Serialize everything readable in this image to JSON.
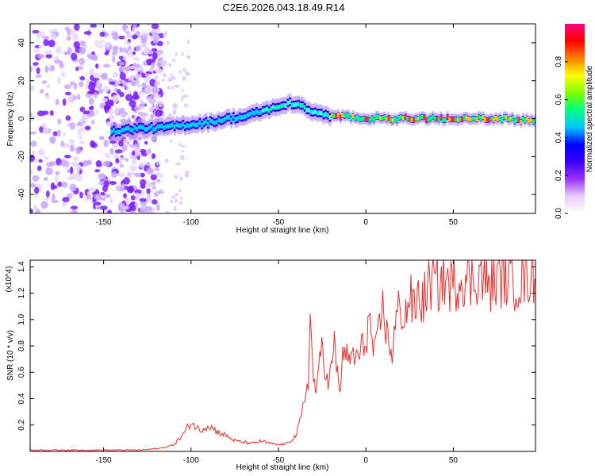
{
  "title": "C2E6.2026.043.18.49.R14",
  "chart_data": [
    {
      "type": "heatmap",
      "title": "C2E6.2026.043.18.49.R14",
      "xlabel": "Height of straight line (km)",
      "ylabel": "Frequency (Hz)",
      "xlim": [
        -192,
        97
      ],
      "ylim": [
        -50,
        50
      ],
      "xticks": [
        -150,
        -100,
        -50,
        0,
        50
      ],
      "yticks": [
        -40,
        -20,
        0,
        20,
        40
      ],
      "colorbar": {
        "label": "Normalized spectral amplitude",
        "range": [
          0.0,
          1.0
        ],
        "ticks": [
          0.0,
          0.2,
          0.4,
          0.6,
          0.8
        ],
        "colormap": [
          "#ffffff",
          "#e6ccff",
          "#9b30ff",
          "#3a00ff",
          "#0000ff",
          "#00c8ff",
          "#00ff80",
          "#80ff00",
          "#ffff00",
          "#ff8000",
          "#ff0000",
          "#ff0080"
        ]
      },
      "ridge": {
        "x": [
          -145,
          -140,
          -130,
          -120,
          -110,
          -100,
          -90,
          -80,
          -70,
          -60,
          -55,
          -50,
          -45,
          -40,
          -35,
          -30,
          -25,
          -20,
          -10,
          0,
          10,
          20,
          30,
          40,
          50,
          60,
          70,
          80,
          90,
          97
        ],
        "y": [
          -7,
          -6,
          -5,
          -5,
          -4,
          -3,
          -2,
          0,
          1,
          4,
          5,
          6,
          8,
          8,
          5,
          3,
          2,
          1,
          1,
          0,
          0,
          0,
          0,
          0,
          0,
          0,
          0,
          0,
          -1,
          -1
        ]
      }
    },
    {
      "type": "line",
      "xlabel": "Height of straight line (km)",
      "ylabel": "SNR (10 * v/v)",
      "y_multiplier": "(x10^4)",
      "xlim": [
        -192,
        97
      ],
      "ylim": [
        0,
        1.45
      ],
      "xticks": [
        -150,
        -100,
        -50,
        0,
        50
      ],
      "yticks": [
        0.2,
        0.4,
        0.6,
        0.8,
        1.0,
        1.2,
        1.4
      ],
      "series": [
        {
          "color": "#e83030",
          "x": [
            -192,
            -180,
            -170,
            -160,
            -150,
            -140,
            -130,
            -120,
            -115,
            -110,
            -105,
            -102,
            -100,
            -95,
            -90,
            -85,
            -80,
            -75,
            -70,
            -65,
            -60,
            -55,
            -50,
            -45,
            -40,
            -37,
            -35,
            -33,
            -32,
            -30,
            -28,
            -25,
            -22,
            -20,
            -18,
            -15,
            -12,
            -10,
            -8,
            -5,
            -3,
            0,
            2,
            5,
            8,
            10,
            12,
            15,
            18,
            20,
            22,
            25,
            28,
            30,
            32,
            35,
            38,
            40,
            45,
            50,
            55,
            60,
            65,
            70,
            75,
            80,
            85,
            90,
            95,
            97
          ],
          "y": [
            0.01,
            0.01,
            0.01,
            0.01,
            0.01,
            0.01,
            0.01,
            0.02,
            0.03,
            0.05,
            0.12,
            0.18,
            0.22,
            0.16,
            0.2,
            0.15,
            0.12,
            0.08,
            0.07,
            0.06,
            0.08,
            0.06,
            0.05,
            0.06,
            0.12,
            0.25,
            0.4,
            0.55,
            1.02,
            0.55,
            0.45,
            0.85,
            0.5,
            0.6,
            0.8,
            0.45,
            0.85,
            0.62,
            0.75,
            0.7,
            0.75,
            0.85,
            1.0,
            0.7,
            0.95,
            1.12,
            0.88,
            0.75,
            1.05,
            1.1,
            1.0,
            1.18,
            1.05,
            1.2,
            1.12,
            1.22,
            1.3,
            1.25,
            1.3,
            1.25,
            1.33,
            1.28,
            1.35,
            1.25,
            1.3,
            1.32,
            1.28,
            1.3,
            1.35,
            1.3
          ]
        }
      ]
    }
  ]
}
